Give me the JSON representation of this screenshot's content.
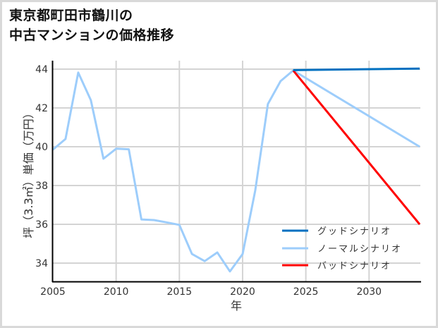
{
  "chart_data": {
    "type": "line",
    "title": "東京都町田市鶴川の\n中古マンションの価格推移",
    "title_lines": [
      "東京都町田市鶴川の",
      "中古マンションの価格推移"
    ],
    "xlabel": "年",
    "ylabel": "坪（3.3㎡）単価（万円）",
    "xlim": [
      2005,
      2034
    ],
    "ylim": [
      33,
      44.5
    ],
    "xticks": [
      2005,
      2010,
      2015,
      2020,
      2025,
      2030
    ],
    "yticks": [
      34,
      36,
      38,
      40,
      42,
      44
    ],
    "grid": true,
    "legend_position": "lower right",
    "series": [
      {
        "name": "グッドシナリオ",
        "color": "#0070c0",
        "x": [
          2024,
          2034
        ],
        "values": [
          43.95,
          44.03
        ]
      },
      {
        "name": "ノーマルシナリオ",
        "color": "#9dcdfb",
        "x": [
          2005,
          2006,
          2007,
          2008,
          2009,
          2010,
          2011,
          2012,
          2013,
          2014,
          2015,
          2016,
          2017,
          2018,
          2019,
          2020,
          2021,
          2022,
          2023,
          2024,
          2034
        ],
        "values": [
          39.85,
          40.4,
          43.82,
          42.4,
          39.38,
          39.9,
          39.87,
          36.25,
          36.22,
          36.1,
          35.97,
          34.47,
          34.1,
          34.55,
          33.57,
          34.47,
          37.75,
          42.2,
          43.38,
          43.93,
          40.0
        ]
      },
      {
        "name": "バッドシナリオ",
        "color": "#ff0000",
        "x": [
          2024,
          2034
        ],
        "values": [
          43.93,
          36.0
        ]
      }
    ]
  }
}
